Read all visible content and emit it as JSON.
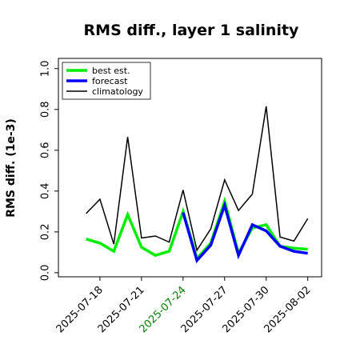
{
  "chart_data": {
    "type": "line",
    "title": "RMS diff., layer 1 salinity",
    "ylabel": "RMS diff. (1e-3)",
    "xlabel": "",
    "ylim": [
      -0.02,
      1.05
    ],
    "yticks": [
      0.0,
      0.2,
      0.4,
      0.6,
      0.8,
      1.0
    ],
    "ytick_labels": [
      "0.0",
      "0.2",
      "0.4",
      "0.6",
      "0.8",
      "1.0"
    ],
    "xlim": [
      "2025-07-15",
      "2025-08-03"
    ],
    "xticks": [
      "2025-07-18",
      "2025-07-21",
      "2025-07-24",
      "2025-07-27",
      "2025-07-30",
      "2025-08-02"
    ],
    "xtick_labels": [
      "2025-07-18",
      "2025-07-21",
      "2025-07-24",
      "2025-07-27",
      "2025-07-30",
      "2025-08-02"
    ],
    "xtick_colors": [
      "#000000",
      "#000000",
      "#008000",
      "#000000",
      "#000000",
      "#000000"
    ],
    "x": [
      "2025-07-17",
      "2025-07-18",
      "2025-07-19",
      "2025-07-20",
      "2025-07-21",
      "2025-07-22",
      "2025-07-23",
      "2025-07-24",
      "2025-07-25",
      "2025-07-26",
      "2025-07-27",
      "2025-07-28",
      "2025-07-29",
      "2025-07-30",
      "2025-07-31",
      "2025-08-01",
      "2025-08-02"
    ],
    "series": [
      {
        "name": "best est.",
        "color": "#00ee00",
        "values": [
          0.165,
          0.145,
          0.105,
          0.285,
          0.125,
          0.085,
          0.105,
          0.3,
          0.07,
          0.145,
          0.35,
          0.095,
          0.22,
          0.235,
          0.13,
          0.12,
          0.115
        ]
      },
      {
        "name": "forecast",
        "color": "#0000ff",
        "values": [
          null,
          null,
          null,
          null,
          null,
          null,
          null,
          0.295,
          0.06,
          0.135,
          0.33,
          0.085,
          0.235,
          0.205,
          0.13,
          0.105,
          0.095
        ]
      },
      {
        "name": "climatology",
        "color": "#000000",
        "values": [
          0.29,
          0.36,
          0.14,
          0.665,
          0.17,
          0.18,
          0.15,
          0.405,
          0.11,
          0.215,
          0.455,
          0.305,
          0.385,
          0.815,
          0.175,
          0.155,
          0.265
        ]
      }
    ],
    "legend": [
      "best est.",
      "forecast",
      "climatology"
    ],
    "legend_position": "top-left",
    "grid": false
  }
}
